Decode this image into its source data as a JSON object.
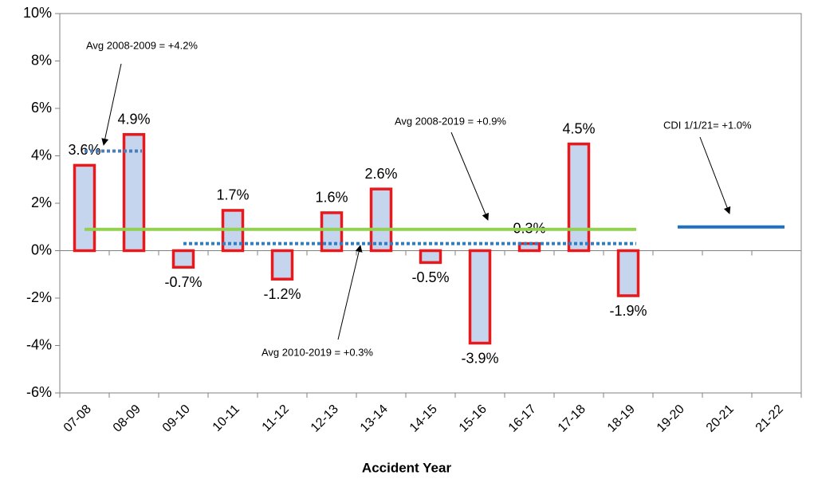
{
  "chart_data": {
    "type": "bar",
    "x_label": "Accident Year",
    "categories": [
      "07-08",
      "08-09",
      "09-10",
      "10-11",
      "11-12",
      "12-13",
      "13-14",
      "14-15",
      "15-16",
      "16-17",
      "17-18",
      "18-19",
      "19-20",
      "20-21",
      "21-22"
    ],
    "values": [
      3.6,
      4.9,
      -0.7,
      1.7,
      -1.2,
      1.6,
      2.6,
      -0.5,
      -3.9,
      0.3,
      4.5,
      -1.9,
      null,
      null,
      null
    ],
    "value_labels": [
      "3.6%",
      "4.9%",
      "-0.7%",
      "1.7%",
      "-1.2%",
      "1.6%",
      "2.6%",
      "-0.5%",
      "-3.9%",
      "0.3%",
      "4.5%",
      "-1.9%",
      null,
      null,
      null
    ],
    "color": "#c6d5ee",
    "edge_color": "#e8191c",
    "ylim": [
      -6,
      10
    ],
    "yticks": [
      {
        "value": -6,
        "label": "-6%"
      },
      {
        "value": -4,
        "label": "-4%"
      },
      {
        "value": -2,
        "label": "-2%"
      },
      {
        "value": 0,
        "label": "0%"
      },
      {
        "value": 2,
        "label": "2%"
      },
      {
        "value": 4,
        "label": "4%"
      },
      {
        "value": 6,
        "label": "6%"
      },
      {
        "value": 8,
        "label": "8%"
      },
      {
        "value": 10,
        "label": "10%"
      }
    ],
    "grid": false,
    "reference_lines": [
      {
        "label": "Avg 2008-2009 = +4.2%",
        "value": 4.2,
        "from": 0,
        "to": 1,
        "color": "#4a7ebb",
        "style": "dotted"
      },
      {
        "label": "Avg 2008-2019 = +0.9%",
        "value": 0.9,
        "from": 0,
        "to": 11,
        "color": "#92d050",
        "style": "solid"
      },
      {
        "label": "Avg 2010-2019 = +0.3%",
        "value": 0.3,
        "from": 2,
        "to": 11,
        "color": "#2f7ec4",
        "style": "dotted"
      },
      {
        "label": "CDI 1/1/21= +1.0%",
        "value": 1.0,
        "from": 12,
        "to": 14,
        "color": "#1f70c1",
        "style": "solid"
      }
    ]
  }
}
